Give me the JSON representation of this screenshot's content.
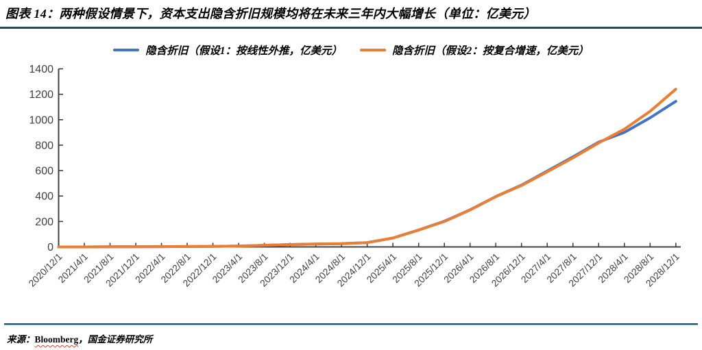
{
  "header": {
    "title": "图表 14：两种假设情景下，资本支出隐含折旧规模均将在未来三年内大幅增长（单位：亿美元）"
  },
  "footer": {
    "prefix": "来源：",
    "source_word": "Bloomberg",
    "suffix": "，国金证券研究所"
  },
  "colors": {
    "series1_blue": "#4472C4",
    "series2_orange": "#ED7D31",
    "axis": "#404040",
    "rule_dark_teal": "#1F4E63",
    "spellcheck_red": "#E03C31"
  },
  "chart_data": {
    "type": "line",
    "title": "图表 14：两种假设情景下，资本支出隐含折旧规模均将在未来三年内大幅增长（单位：亿美元）",
    "xlabel": "",
    "ylabel": "",
    "ylim": [
      0,
      1400
    ],
    "ytick_step": 200,
    "grid": false,
    "legend_position": "top",
    "categories": [
      "2020/12/1",
      "2021/4/1",
      "2021/8/1",
      "2021/12/1",
      "2022/4/1",
      "2022/8/1",
      "2022/12/1",
      "2023/4/1",
      "2023/8/1",
      "2023/12/1",
      "2024/4/1",
      "2024/8/1",
      "2024/12/1",
      "2025/4/1",
      "2025/8/1",
      "2025/12/1",
      "2026/4/1",
      "2026/8/1",
      "2026/12/1",
      "2027/4/1",
      "2027/8/1",
      "2027/12/1",
      "2028/4/1",
      "2028/8/1",
      "2028/12/1"
    ],
    "series": [
      {
        "name": "隐含折旧（假设1：按线性外推，亿美元）",
        "color": "#4472C4",
        "values": [
          0,
          0,
          1,
          1,
          2,
          3,
          4,
          7,
          13,
          19,
          23,
          26,
          34,
          70,
          133,
          202,
          292,
          396,
          486,
          596,
          708,
          824,
          901,
          1015,
          1145
        ]
      },
      {
        "name": "隐含折旧（假设2：按复合增速，亿美元）",
        "color": "#ED7D31",
        "values": [
          0,
          0,
          1,
          1,
          2,
          3,
          4,
          7,
          13,
          19,
          23,
          26,
          34,
          70,
          133,
          200,
          290,
          395,
          483,
          590,
          700,
          818,
          926,
          1066,
          1240
        ]
      }
    ]
  }
}
